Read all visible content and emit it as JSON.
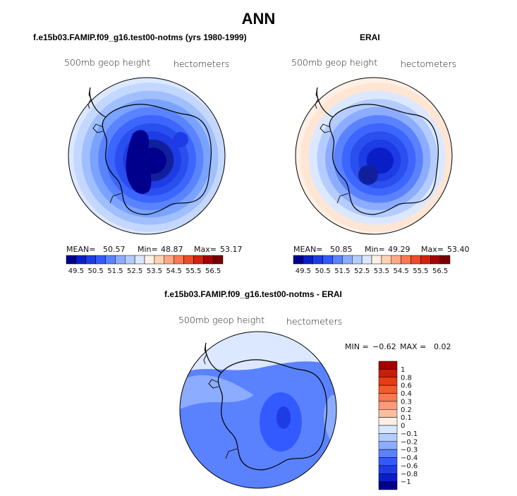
{
  "title": "ANN",
  "panels": {
    "left": {
      "title": "f.e15b03.FAMIP.f09_g16.test00-notms (yrs 1980-1999)",
      "field": "500mb geop height",
      "units": "hectometers",
      "mean_label": "MEAN=",
      "mean": "50.57",
      "min_label": "Min=",
      "min": "48.87",
      "max_label": "Max=",
      "max": "53.17"
    },
    "right": {
      "title": "ERAI",
      "field": "500mb geop height",
      "units": "hectometers",
      "mean_label": "MEAN=",
      "mean": "50.85",
      "min_label": "Min=",
      "min": "49.29",
      "max_label": "Max=",
      "max": "53.40"
    },
    "diff": {
      "title": "f.e15b03.FAMIP.f09_g16.test00-notms - ERAI",
      "field": "500mb geop height",
      "units": "hectometers",
      "min_label": "MIN =",
      "min": "−0.62",
      "max_label": "MAX =",
      "max": "0.02"
    }
  },
  "colorbar_abs": {
    "labels": [
      "49.5",
      "50.5",
      "51.5",
      "52.5",
      "53.5",
      "54.5",
      "55.5",
      "56.5"
    ],
    "colors": [
      "#00008c",
      "#0a1ec8",
      "#1e3ce6",
      "#325aff",
      "#5a82ff",
      "#8cacff",
      "#b4ccff",
      "#dce8ff",
      "#fff0e6",
      "#ffd2b4",
      "#ffa882",
      "#ff7850",
      "#f04b28",
      "#d2230f",
      "#a50505",
      "#780000"
    ]
  },
  "colorbar_diff": {
    "labels": [
      "1",
      "0.8",
      "0.6",
      "0.4",
      "0.3",
      "0.2",
      "0.1",
      "0",
      "−0.1",
      "−0.2",
      "−0.3",
      "−0.4",
      "−0.6",
      "−0.8",
      "−1"
    ],
    "colors": [
      "#a50000",
      "#c81e0a",
      "#e63c14",
      "#f55a28",
      "#fa7850",
      "#fc9a78",
      "#fdbea0",
      "#fff0e6",
      "#d8e8ff",
      "#b4ccff",
      "#8cacff",
      "#5a82ff",
      "#325aff",
      "#1e3ce6",
      "#0a1ec8",
      "#00008c"
    ]
  },
  "map_fill": {
    "left": {
      "rings": [
        "#c4d8ff",
        "#a0bfff",
        "#7aa2ff",
        "#5a84ff",
        "#3c66ff",
        "#2a4fef",
        "#1e3ce6",
        "#10209c",
        "#00008c"
      ],
      "edge": "#dce8ff"
    },
    "right": {
      "rings": [
        "#ffe6d4",
        "#dce8ff",
        "#b4ccff",
        "#8cacff",
        "#5a82ff",
        "#3c66ff",
        "#2a4fef",
        "#1e3ce6",
        "#0a1ec8"
      ],
      "edge": "#fff0e6"
    },
    "diff": {
      "base": "#5a82ff",
      "outer": "#8cacff",
      "pale": "#dce8ff",
      "dark": "#325aff",
      "core": "#1e3ce6"
    }
  }
}
